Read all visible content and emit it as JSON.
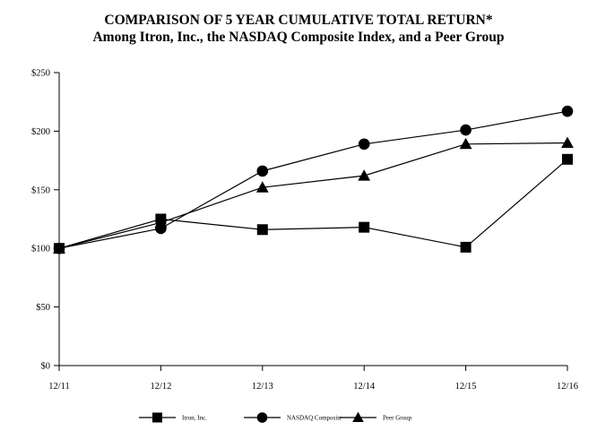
{
  "chart_data": {
    "type": "line",
    "title": "COMPARISON OF 5 YEAR CUMULATIVE TOTAL RETURN*",
    "subtitle": "Among Itron, Inc., the NASDAQ Composite Index, and a Peer Group",
    "categories": [
      "12/11",
      "12/12",
      "12/13",
      "12/14",
      "12/15",
      "12/16"
    ],
    "ylim": [
      0,
      250
    ],
    "y_ticks": [
      0,
      50,
      100,
      150,
      200,
      250
    ],
    "y_tick_labels": [
      "$0",
      "$50",
      "$100",
      "$150",
      "$200",
      "$250"
    ],
    "grid": false,
    "legend_position": "bottom",
    "series": [
      {
        "name": "Itron, Inc.",
        "marker": "square",
        "values": [
          100,
          125,
          116,
          118,
          101,
          176
        ]
      },
      {
        "name": "NASDAQ Composite",
        "marker": "circle",
        "values": [
          100,
          117,
          166,
          189,
          201,
          217
        ]
      },
      {
        "name": "Peer Group",
        "marker": "triangle",
        "values": [
          100,
          122,
          152,
          162,
          189,
          190
        ]
      }
    ],
    "line_color": "#000000"
  }
}
